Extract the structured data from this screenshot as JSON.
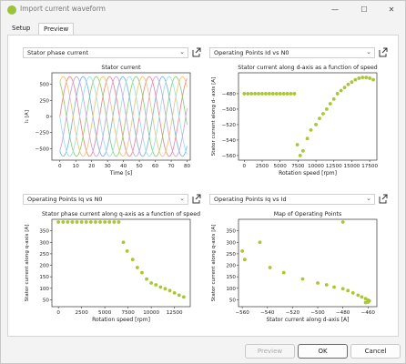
{
  "window": {
    "title": "Import current waveform",
    "minimize": "—",
    "maximize": "☐",
    "close": "✕"
  },
  "tabs": [
    {
      "label": "Setup"
    },
    {
      "label": "Preview"
    }
  ],
  "buttons": {
    "preview": "Preview",
    "ok": "OK",
    "cancel": "Cancel"
  },
  "colors": {
    "accent": "#a8c731",
    "app_icon": "#9ac23c"
  },
  "panels": [
    {
      "dropdown": "Stator phase current",
      "chart_data": {
        "type": "line",
        "title": "Stator current",
        "xlabel": "Time [s]",
        "ylabel": "I₁ [A]",
        "xlim": [
          -5,
          82
        ],
        "ylim": [
          -680,
          680
        ],
        "xticks": [
          0,
          10,
          20,
          30,
          40,
          50,
          60,
          70,
          80
        ],
        "yticks": [
          500,
          250,
          0,
          -250,
          -500
        ],
        "ytick_labels": [
          "500",
          "250",
          "0",
          "−250",
          "−500"
        ],
        "series": [
          {
            "amplitude": 620,
            "period": 25,
            "phase_deg": 0,
            "color": "#f28a8a"
          },
          {
            "amplitude": 620,
            "period": 25,
            "phase_deg": 120,
            "color": "#8fd17a"
          },
          {
            "amplitude": 620,
            "period": 25,
            "phase_deg": 240,
            "color": "#7fb6e8"
          },
          {
            "amplitude": 620,
            "period": 25,
            "phase_deg": 60,
            "color": "#f5c37a"
          },
          {
            "amplitude": 620,
            "period": 25,
            "phase_deg": 180,
            "color": "#9fe0e6"
          },
          {
            "amplitude": 620,
            "period": 25,
            "phase_deg": 300,
            "color": "#c9a8e0"
          }
        ]
      }
    },
    {
      "dropdown": "Operating Points Id vs N0",
      "chart_data": {
        "type": "scatter",
        "title": "Stator current along d-axis as a function of speed",
        "xlabel": "Rotation speed [rpm]",
        "ylabel": "Stator current along d- axis [A]",
        "xlim": [
          -800,
          18500
        ],
        "ylim": [
          -566,
          -453
        ],
        "xticks": [
          0,
          2500,
          5000,
          7500,
          10000,
          12500,
          15000,
          17500
        ],
        "yticks": [
          -480,
          -500,
          -520,
          -540,
          -560
        ],
        "ytick_labels": [
          "−480",
          "−500",
          "−520",
          "−540",
          "−560"
        ],
        "x": [
          0,
          500,
          1000,
          1500,
          2000,
          2500,
          3000,
          3500,
          4000,
          4500,
          5000,
          5500,
          6000,
          6500,
          7000,
          7400,
          7800,
          8200,
          8800,
          9300,
          10000,
          10500,
          11000,
          11500,
          12000,
          12500,
          13000,
          13500,
          14000,
          14500,
          15000,
          15500,
          16000,
          16500,
          17000,
          17500,
          18000
        ],
        "y": [
          -480,
          -480,
          -480,
          -480,
          -480,
          -480,
          -480,
          -480,
          -480,
          -480,
          -480,
          -480,
          -480,
          -480,
          -480,
          -546,
          -560,
          -554,
          -538,
          -527,
          -520,
          -512,
          -506,
          -500,
          -493,
          -487,
          -480,
          -476,
          -472,
          -468,
          -465,
          -462,
          -460,
          -459,
          -459,
          -460,
          -462
        ]
      }
    },
    {
      "dropdown": "Operating Points Iq vs N0",
      "chart_data": {
        "type": "scatter",
        "title": "Stator phase current along q-axis as a function of speed",
        "xlabel": "Rotation speed [rpm]",
        "ylabel": "Stator current along q-axis [A]",
        "xlim": [
          -700,
          14200
        ],
        "ylim": [
          20,
          400
        ],
        "xticks": [
          0,
          2500,
          5000,
          7500,
          10000,
          12500
        ],
        "yticks": [
          50,
          100,
          150,
          200,
          250,
          300,
          350
        ],
        "ytick_labels": [
          "50",
          "100",
          "150",
          "200",
          "250",
          "300",
          "350"
        ],
        "x": [
          0,
          500,
          1000,
          1500,
          2000,
          2500,
          3000,
          3500,
          4000,
          4500,
          5000,
          5500,
          6000,
          6500,
          7000,
          7400,
          8000,
          8500,
          9000,
          9500,
          10000,
          10500,
          11000,
          11500,
          12000,
          12500,
          13000,
          13500
        ],
        "y": [
          388,
          388,
          388,
          388,
          388,
          388,
          388,
          388,
          388,
          388,
          388,
          388,
          388,
          388,
          300,
          262,
          225,
          190,
          168,
          140,
          123,
          115,
          105,
          98,
          90,
          80,
          70,
          62
        ]
      }
    },
    {
      "dropdown": "Operating Points Iq vs Id",
      "chart_data": {
        "type": "scatter",
        "title": "Map of Operating Points",
        "xlabel": "Stator current along d-axis [A]",
        "ylabel": "Stator current along q-axis [A]",
        "xlim": [
          -563,
          -453
        ],
        "ylim": [
          20,
          400
        ],
        "xticks": [
          -560,
          -540,
          -520,
          -500,
          -480,
          -460
        ],
        "xtick_labels": [
          "−560",
          "−540",
          "−520",
          "−500",
          "−480",
          "−460"
        ],
        "yticks": [
          50,
          100,
          150,
          200,
          250,
          300,
          350
        ],
        "ytick_labels": [
          "50",
          "100",
          "150",
          "200",
          "250",
          "300",
          "350"
        ],
        "x": [
          -560,
          -558,
          -546,
          -538,
          -527,
          -512,
          -500,
          -493,
          -487,
          -480,
          -476,
          -472,
          -468,
          -465,
          -462,
          -460,
          -459,
          -460,
          -462,
          -480
        ],
        "y": [
          262,
          225,
          300,
          190,
          168,
          140,
          123,
          115,
          105,
          98,
          90,
          80,
          70,
          62,
          55,
          48,
          45,
          40,
          38,
          388
        ]
      }
    }
  ]
}
